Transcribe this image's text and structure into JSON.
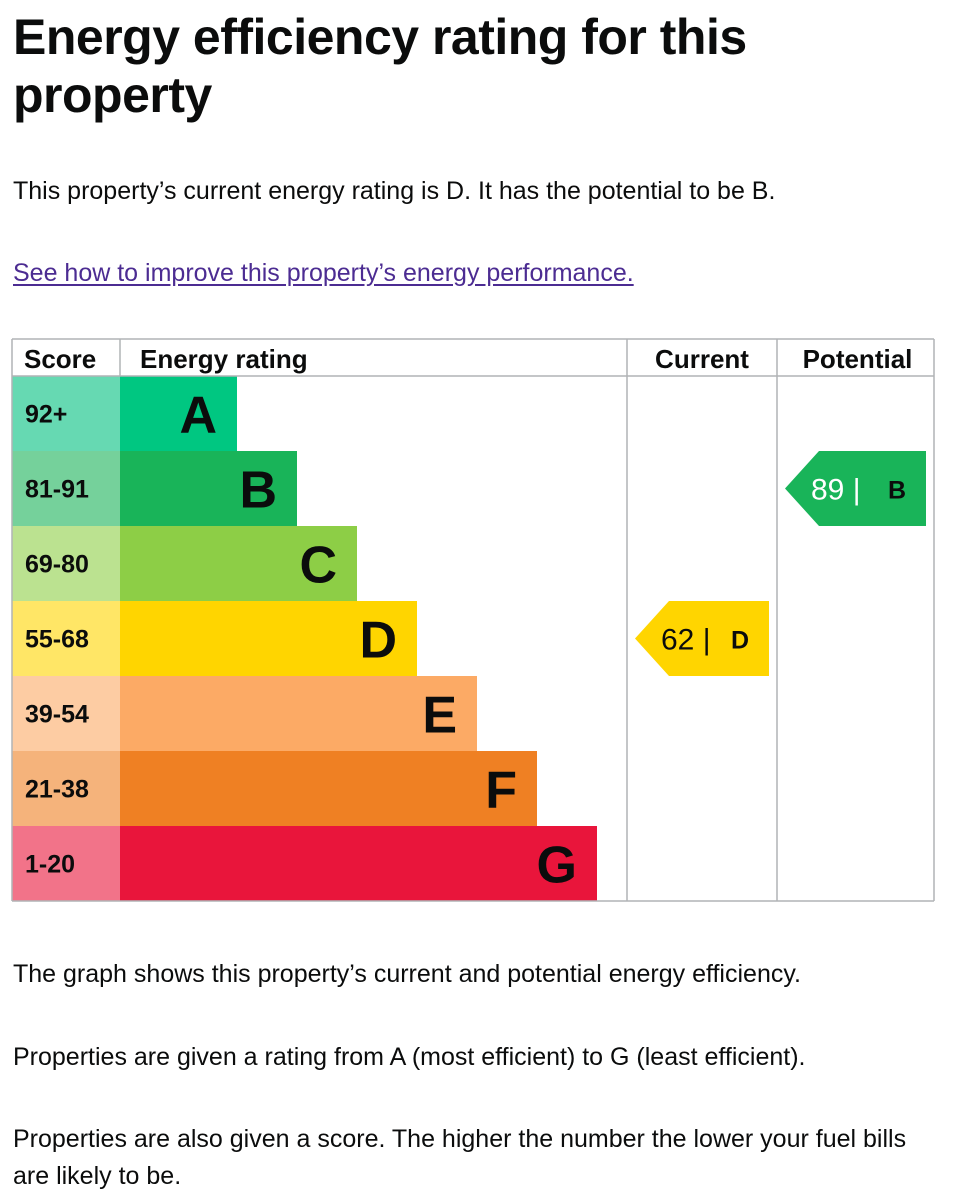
{
  "page": {
    "title": "Energy efficiency rating for this property",
    "summary": "This property’s current energy rating is D. It has the potential to be B.",
    "improve_link": "See how to improve this property’s energy performance.",
    "paragraphs": [
      "The graph shows this property’s current and potential energy efficiency.",
      "Properties are given a rating from A (most efficient) to G (least efficient).",
      "Properties are also given a score. The higher the number the lower your fuel bills are likely to be."
    ]
  },
  "chart_data": {
    "type": "bar",
    "headers": {
      "score": "Score",
      "rating": "Energy rating",
      "current": "Current",
      "potential": "Potential"
    },
    "bands": [
      {
        "letter": "A",
        "range": "92+",
        "color": "#00c781",
        "score_color": "#66d9b2",
        "text_color": "#0b0c0c"
      },
      {
        "letter": "B",
        "range": "81-91",
        "color": "#19b459",
        "score_color": "#75d19b",
        "text_color": "#0b0c0c"
      },
      {
        "letter": "C",
        "range": "69-80",
        "color": "#8dce46",
        "score_color": "#bbe290",
        "text_color": "#0b0c0c"
      },
      {
        "letter": "D",
        "range": "55-68",
        "color": "#ffd500",
        "score_color": "#ffe666",
        "text_color": "#0b0c0c"
      },
      {
        "letter": "E",
        "range": "39-54",
        "color": "#fcaa65",
        "score_color": "#fdcca3",
        "text_color": "#0b0c0c"
      },
      {
        "letter": "F",
        "range": "21-38",
        "color": "#ef8023",
        "score_color": "#f5b37b",
        "text_color": "#0b0c0c"
      },
      {
        "letter": "G",
        "range": "1-20",
        "color": "#e9153b",
        "score_color": "#f27389",
        "text_color": "#0b0c0c"
      }
    ],
    "current": {
      "score": 62,
      "band": "D",
      "label": "62 |",
      "letter": "D",
      "color": "#ffd500"
    },
    "potential": {
      "score": 89,
      "band": "B",
      "label": "89 |",
      "letter": "B",
      "color": "#19b459"
    }
  }
}
